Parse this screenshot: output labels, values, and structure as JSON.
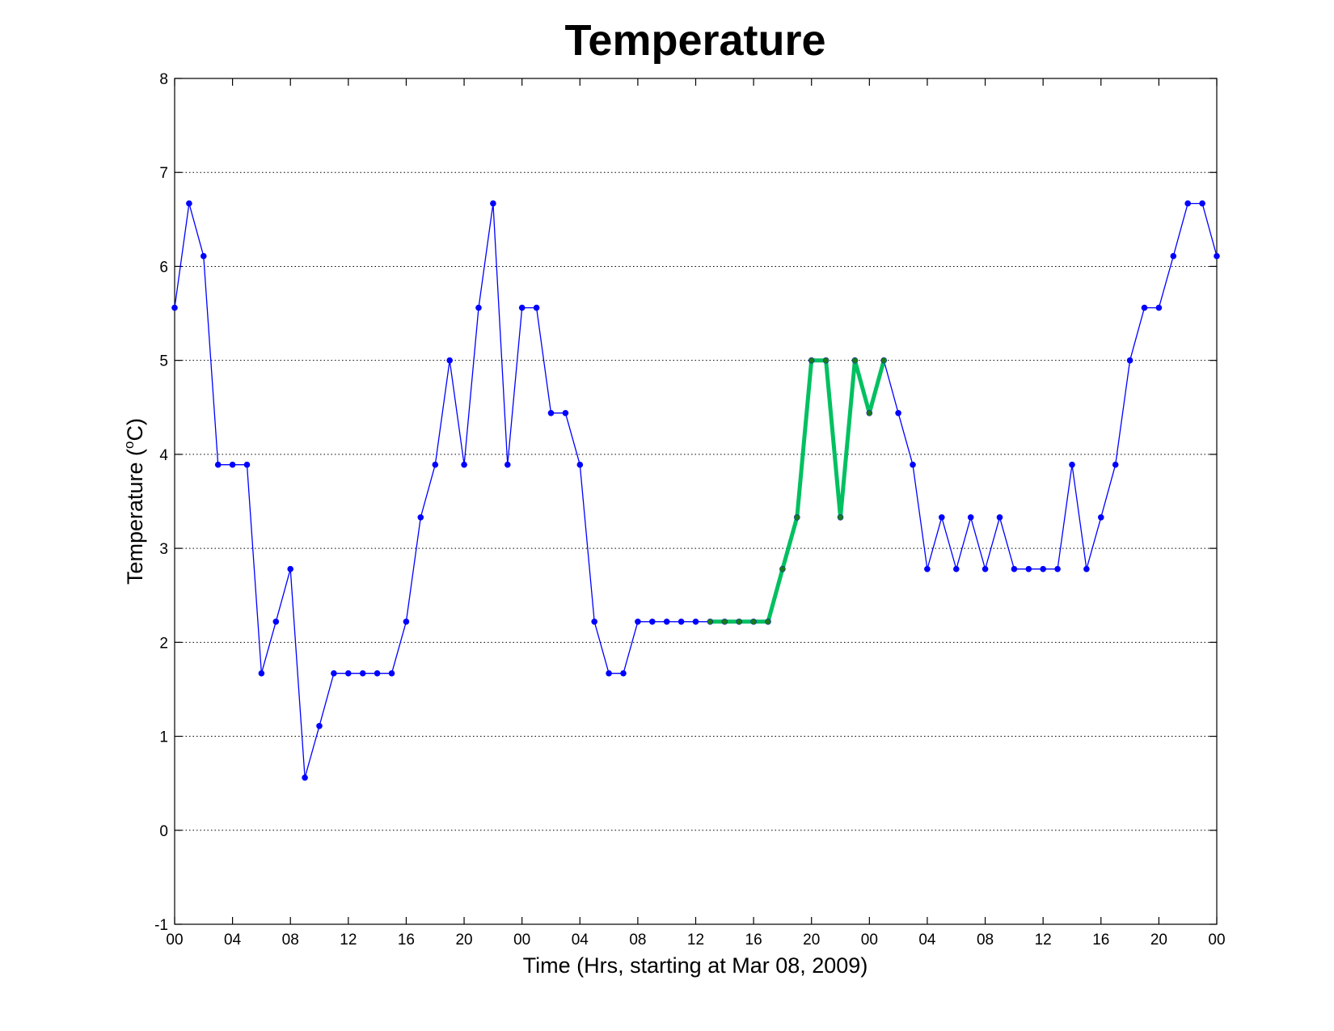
{
  "chart_data": {
    "type": "line",
    "title": "Temperature",
    "xlabel": "Time (Hrs, starting at Mar 08, 2009)",
    "ylabel_main": "Temperature (",
    "ylabel_sup": "o",
    "ylabel_end": "C)",
    "ylim": [
      -1,
      8
    ],
    "yticks": [
      -1,
      0,
      1,
      2,
      3,
      4,
      5,
      6,
      7,
      8
    ],
    "grid": "horizontal dotted",
    "xlim_hours": [
      0,
      72
    ],
    "xticks": [
      {
        "hour": 0,
        "label": "00"
      },
      {
        "hour": 4,
        "label": "04"
      },
      {
        "hour": 8,
        "label": "08"
      },
      {
        "hour": 12,
        "label": "12"
      },
      {
        "hour": 16,
        "label": "16"
      },
      {
        "hour": 20,
        "label": "20"
      },
      {
        "hour": 24,
        "label": "00"
      },
      {
        "hour": 28,
        "label": "04"
      },
      {
        "hour": 32,
        "label": "08"
      },
      {
        "hour": 36,
        "label": "12"
      },
      {
        "hour": 40,
        "label": "16"
      },
      {
        "hour": 44,
        "label": "20"
      },
      {
        "hour": 48,
        "label": "00"
      },
      {
        "hour": 52,
        "label": "04"
      },
      {
        "hour": 56,
        "label": "08"
      },
      {
        "hour": 60,
        "label": "12"
      },
      {
        "hour": 64,
        "label": "16"
      },
      {
        "hour": 68,
        "label": "20"
      },
      {
        "hour": 72,
        "label": "00"
      }
    ],
    "series": [
      {
        "color": "#0000ff",
        "marker_color": "#0000ff",
        "x": [
          0,
          1,
          2,
          3,
          4,
          5,
          6,
          7,
          8,
          9,
          10,
          11,
          12,
          13,
          14,
          15,
          16,
          17,
          18,
          19,
          20,
          21,
          22,
          23,
          24,
          25,
          26,
          27,
          28,
          29,
          30,
          31,
          32,
          33,
          34,
          35,
          36,
          37,
          38,
          39,
          40,
          41,
          42,
          43,
          44,
          45,
          46,
          47,
          48,
          49,
          50,
          51,
          52,
          53,
          54,
          55,
          56,
          57,
          58,
          59,
          60,
          61,
          62,
          63,
          64,
          65,
          66,
          67,
          68,
          69,
          70,
          71,
          72
        ],
        "y": [
          5.56,
          6.67,
          6.11,
          3.89,
          3.89,
          3.89,
          1.67,
          2.22,
          2.78,
          0.56,
          1.11,
          1.67,
          1.67,
          1.67,
          1.67,
          1.67,
          2.22,
          3.33,
          3.89,
          5.0,
          3.89,
          5.56,
          6.67,
          3.89,
          5.56,
          5.56,
          4.44,
          4.44,
          3.89,
          2.22,
          1.67,
          1.67,
          2.22,
          2.22,
          2.22,
          2.22,
          2.22,
          2.22,
          2.22,
          2.22,
          2.22,
          2.22,
          2.78,
          3.33,
          5.0,
          5.0,
          3.33,
          5.0,
          4.44,
          5.0,
          4.44,
          3.89,
          2.78,
          3.33,
          2.78,
          3.33,
          2.78,
          3.33,
          2.78,
          2.78,
          2.78,
          2.78,
          3.89,
          2.78,
          3.33,
          3.89,
          5.0,
          5.56,
          5.56,
          6.11,
          6.67,
          6.67,
          6.11
        ]
      },
      {
        "color": "#00c060",
        "marker_color": "#1a7a1a",
        "x": [
          37,
          38,
          39,
          40,
          41,
          42,
          43,
          44,
          45,
          46,
          47,
          48,
          49
        ],
        "y": [
          2.22,
          2.22,
          2.22,
          2.22,
          2.22,
          2.78,
          3.33,
          5.0,
          5.0,
          3.33,
          5.0,
          4.44,
          5.0
        ]
      }
    ]
  }
}
